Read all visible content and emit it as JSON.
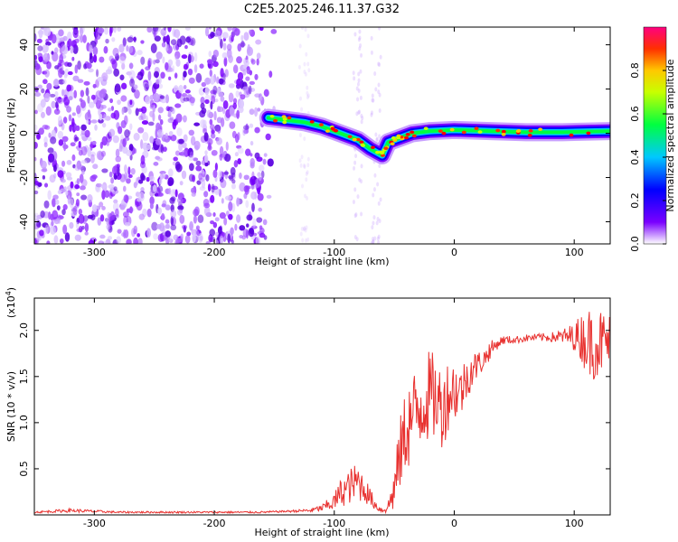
{
  "title": "C2E5.2025.246.11.37.G32",
  "chart_data": [
    {
      "type": "heatmap",
      "xlabel": "Height of straight line (km)",
      "ylabel": "Frequency (Hz)",
      "xlim": [
        -350,
        130
      ],
      "ylim": [
        -50,
        48
      ],
      "x_ticks": [
        -300,
        -200,
        -100,
        0,
        100
      ],
      "y_ticks": [
        -40,
        -20,
        0,
        20,
        40
      ],
      "colorbar": {
        "label": "Normalized spectral amplitude",
        "ticks": [
          "0.0",
          "0.2",
          "0.4",
          "0.6",
          "0.8"
        ],
        "range": [
          0,
          1
        ]
      },
      "ridge": {
        "x": [
          -155,
          -140,
          -125,
          -110,
          -100,
          -90,
          -80,
          -70,
          -60,
          -55,
          -45,
          -35,
          -20,
          0,
          30,
          60,
          90,
          130
        ],
        "y": [
          7,
          6,
          5,
          3,
          1,
          -1,
          -3,
          -7,
          -10,
          -4,
          -2,
          0,
          1,
          1.5,
          1,
          0.5,
          0.5,
          1
        ]
      }
    },
    {
      "type": "line",
      "xlabel": "Height of straight line (km)",
      "ylabel": "SNR (10 * v/v)",
      "y_scale_label": "(x10",
      "y_scale_exp": "4",
      "xlim": [
        -350,
        130
      ],
      "ylim": [
        0,
        2.35
      ],
      "x_ticks": [
        -300,
        -200,
        -100,
        0,
        100
      ],
      "y_ticks": [
        0.5,
        1.0,
        1.5,
        2.0
      ],
      "y_tick_labels": [
        "0.5",
        "1.0",
        "1.5",
        "2.0"
      ],
      "series": [
        {
          "name": "SNR",
          "color": "#e8312f",
          "x": [
            -350,
            -320,
            -280,
            -240,
            -200,
            -160,
            -140,
            -120,
            -110,
            -100,
            -95,
            -90,
            -85,
            -80,
            -75,
            -70,
            -65,
            -60,
            -55,
            -50,
            -45,
            -40,
            -35,
            -30,
            -25,
            -20,
            -15,
            -10,
            -5,
            0,
            5,
            10,
            15,
            20,
            25,
            30,
            35,
            40,
            50,
            60,
            70,
            80,
            90,
            100,
            105,
            110,
            115,
            120,
            125,
            130
          ],
          "y": [
            0.03,
            0.05,
            0.03,
            0.03,
            0.03,
            0.03,
            0.04,
            0.05,
            0.08,
            0.15,
            0.25,
            0.3,
            0.35,
            0.38,
            0.3,
            0.2,
            0.1,
            0.05,
            0.1,
            0.3,
            0.7,
            1.0,
            1.1,
            1.2,
            1.3,
            1.35,
            1.3,
            1.2,
            1.35,
            1.4,
            1.35,
            1.5,
            1.6,
            1.65,
            1.7,
            1.8,
            1.85,
            1.9,
            1.9,
            1.92,
            1.93,
            1.93,
            1.94,
            1.95,
            1.95,
            1.93,
            1.9,
            1.92,
            1.9,
            1.92
          ],
          "noise": [
            0.01,
            0.02,
            0.01,
            0.01,
            0.01,
            0.01,
            0.01,
            0.02,
            0.04,
            0.1,
            0.15,
            0.18,
            0.2,
            0.22,
            0.15,
            0.1,
            0.05,
            0.03,
            0.08,
            0.25,
            0.4,
            0.5,
            0.5,
            0.5,
            0.5,
            0.5,
            0.45,
            0.45,
            0.4,
            0.35,
            0.3,
            0.25,
            0.2,
            0.15,
            0.12,
            0.1,
            0.06,
            0.05,
            0.04,
            0.04,
            0.04,
            0.05,
            0.08,
            0.15,
            0.25,
            0.35,
            0.4,
            0.4,
            0.35,
            0.3
          ]
        }
      ]
    }
  ]
}
